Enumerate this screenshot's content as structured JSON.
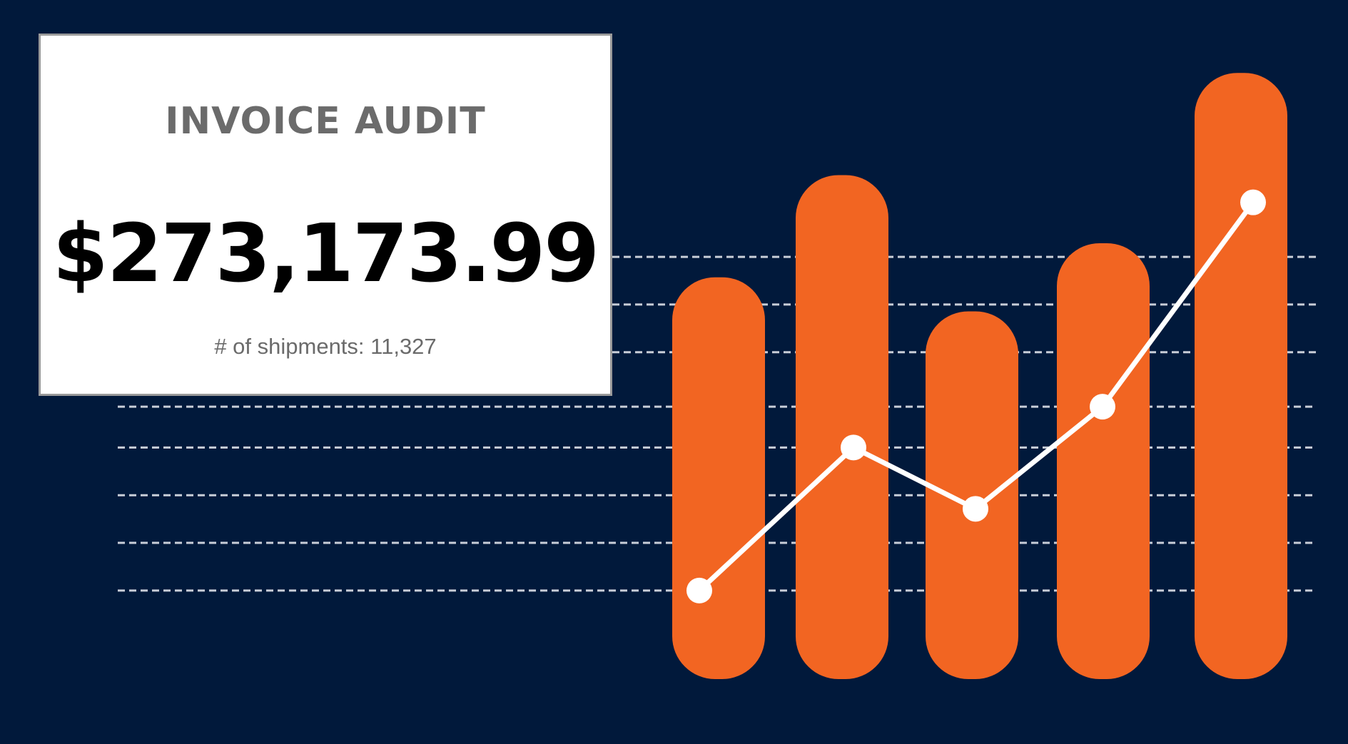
{
  "colors": {
    "background": "#01193b",
    "bar": "#f26522",
    "line": "#ffffff",
    "gridline": "#c9ced8",
    "card_background": "#ffffff",
    "card_border": "#9a9a9a",
    "title_text": "#6b6b6b",
    "amount_text": "#000000"
  },
  "card": {
    "title": "INVOICE AUDIT",
    "amount": "$273,173.99",
    "subtitle": "# of shipments: 11,327"
  },
  "chart_data": {
    "type": "bar",
    "categories": [
      "",
      "",
      "",
      "",
      ""
    ],
    "series": [
      {
        "type": "bar",
        "values": [
          59,
          74,
          54,
          64,
          89
        ]
      },
      {
        "type": "line",
        "values": [
          13,
          34,
          25,
          40,
          70
        ]
      }
    ],
    "ylim": [
      0,
      95
    ],
    "grid": true,
    "gridlines": [
      13,
      20,
      27,
      34,
      40,
      48,
      55,
      62
    ],
    "legend": "none"
  }
}
